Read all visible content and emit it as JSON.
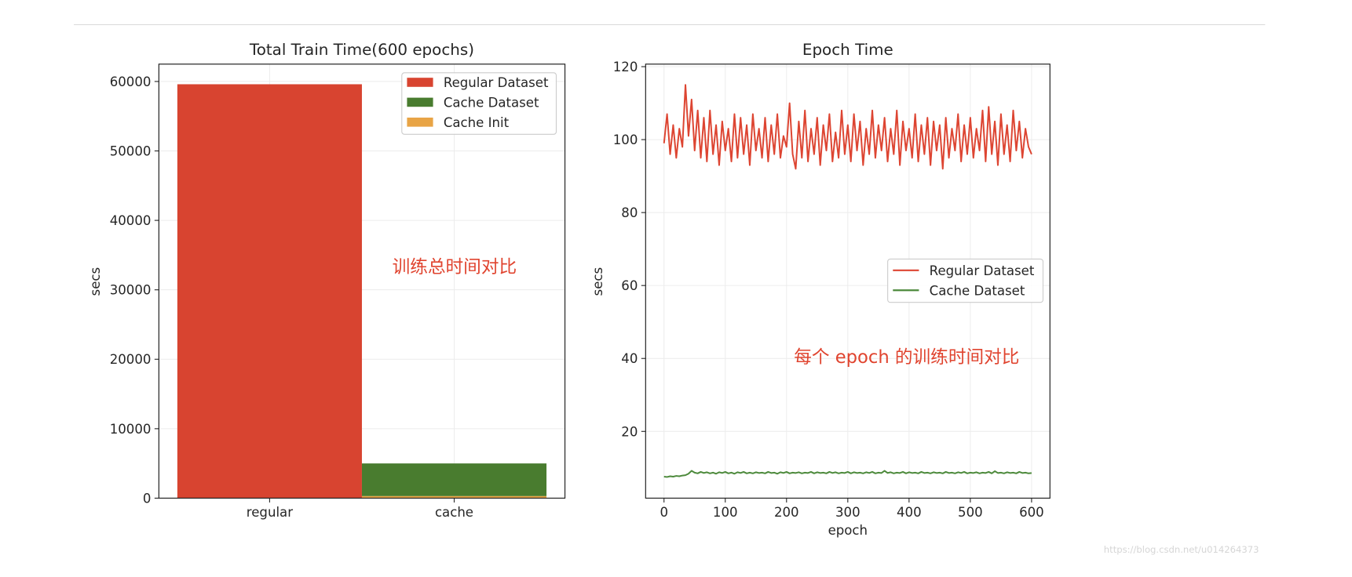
{
  "chart_data": [
    {
      "type": "bar",
      "title": "Total Train Time(600 epochs)",
      "ylabel": "secs",
      "categories": [
        "regular",
        "cache"
      ],
      "series": [
        {
          "name": "Regular Dataset",
          "values": [
            59600,
            0
          ],
          "color": "#d84430"
        },
        {
          "name": "Cache Dataset",
          "values": [
            0,
            4700
          ],
          "color": "#497c2f"
        },
        {
          "name": "Cache Init",
          "values": [
            0,
            300
          ],
          "color": "#e8a445"
        }
      ],
      "stacked": true,
      "ylim": [
        0,
        62500
      ],
      "yticks": [
        0,
        10000,
        20000,
        30000,
        40000,
        50000,
        60000
      ],
      "grid": true,
      "legend_position": "top-right",
      "annotation": "训练总时间对比"
    },
    {
      "type": "line",
      "title": "Epoch Time",
      "xlabel": "epoch",
      "ylabel": "secs",
      "x": [
        0,
        5,
        10,
        15,
        20,
        25,
        30,
        35,
        40,
        45,
        50,
        55,
        60,
        65,
        70,
        75,
        80,
        85,
        90,
        95,
        100,
        105,
        110,
        115,
        120,
        125,
        130,
        135,
        140,
        145,
        150,
        155,
        160,
        165,
        170,
        175,
        180,
        185,
        190,
        195,
        200,
        205,
        210,
        215,
        220,
        225,
        230,
        235,
        240,
        245,
        250,
        255,
        260,
        265,
        270,
        275,
        280,
        285,
        290,
        295,
        300,
        305,
        310,
        315,
        320,
        325,
        330,
        335,
        340,
        345,
        350,
        355,
        360,
        365,
        370,
        375,
        380,
        385,
        390,
        395,
        400,
        405,
        410,
        415,
        420,
        425,
        430,
        435,
        440,
        445,
        450,
        455,
        460,
        465,
        470,
        475,
        480,
        485,
        490,
        495,
        500,
        505,
        510,
        515,
        520,
        525,
        530,
        535,
        540,
        545,
        550,
        555,
        560,
        565,
        570,
        575,
        580,
        585,
        590,
        595,
        600
      ],
      "series": [
        {
          "name": "Regular Dataset",
          "color": "#dd4532",
          "values": [
            99,
            107,
            96,
            104,
            95,
            103,
            98,
            115,
            101,
            111,
            97,
            108,
            95,
            106,
            94,
            108,
            96,
            104,
            93,
            105,
            97,
            103,
            94,
            107,
            95,
            106,
            96,
            104,
            93,
            107,
            97,
            103,
            95,
            106,
            94,
            104,
            96,
            107,
            95,
            101,
            98,
            110,
            96,
            92,
            105,
            95,
            108,
            94,
            103,
            96,
            106,
            93,
            104,
            97,
            107,
            94,
            102,
            95,
            108,
            96,
            104,
            94,
            107,
            97,
            105,
            93,
            103,
            96,
            108,
            95,
            104,
            97,
            106,
            94,
            103,
            96,
            108,
            93,
            105,
            97,
            103,
            95,
            107,
            94,
            104,
            96,
            106,
            93,
            105,
            97,
            104,
            92,
            106,
            95,
            103,
            97,
            107,
            94,
            104,
            96,
            106,
            95,
            103,
            97,
            108,
            94,
            109,
            96,
            105,
            93,
            107,
            96,
            104,
            94,
            108,
            97,
            105,
            95,
            103,
            98,
            96
          ]
        },
        {
          "name": "Cache Dataset",
          "color": "#4d8a3c",
          "values": [
            7.6,
            7.5,
            7.7,
            7.6,
            7.8,
            7.7,
            7.9,
            8.0,
            8.4,
            9.2,
            8.7,
            8.5,
            8.9,
            8.6,
            8.8,
            8.5,
            8.7,
            8.4,
            8.8,
            8.6,
            8.9,
            8.5,
            8.7,
            8.4,
            8.8,
            8.6,
            8.9,
            8.5,
            8.7,
            8.5,
            8.8,
            8.6,
            8.7,
            8.5,
            8.9,
            8.6,
            8.7,
            8.4,
            8.8,
            8.6,
            8.9,
            8.5,
            8.7,
            8.6,
            8.8,
            8.5,
            8.7,
            8.6,
            8.9,
            8.5,
            8.8,
            8.6,
            8.7,
            8.5,
            8.9,
            8.6,
            8.8,
            8.5,
            8.7,
            8.6,
            8.9,
            8.5,
            8.8,
            8.6,
            8.7,
            8.5,
            8.8,
            8.6,
            8.9,
            8.5,
            8.7,
            8.6,
            9.2,
            8.6,
            8.8,
            8.5,
            8.7,
            8.6,
            8.9,
            8.5,
            8.8,
            8.6,
            8.7,
            8.5,
            8.9,
            8.6,
            8.7,
            8.5,
            8.8,
            8.6,
            8.7,
            8.5,
            8.9,
            8.6,
            8.7,
            8.5,
            8.8,
            8.6,
            8.9,
            8.5,
            8.7,
            8.6,
            8.8,
            8.5,
            8.7,
            8.6,
            8.9,
            8.5,
            9.1,
            8.6,
            8.7,
            8.5,
            8.8,
            8.6,
            8.7,
            8.5,
            8.9,
            8.6,
            8.7,
            8.5,
            8.6
          ]
        }
      ],
      "xlim": [
        -30,
        630
      ],
      "ylim": [
        1.7,
        120.7
      ],
      "xticks": [
        0,
        100,
        200,
        300,
        400,
        500,
        600
      ],
      "yticks": [
        20,
        40,
        60,
        80,
        100,
        120
      ],
      "grid": true,
      "legend_position": "center-right",
      "annotation": "每个 epoch 的训练时间对比"
    }
  ],
  "watermark": "https://blog.csdn.net/u014264373"
}
